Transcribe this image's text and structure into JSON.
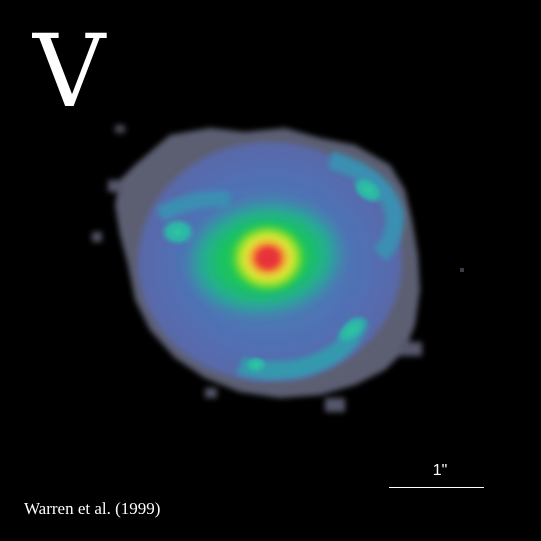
{
  "figure": {
    "filter_label": "V",
    "scale_bar_label": "1\"",
    "credit": "Warren et al. (1999)"
  },
  "colors": {
    "background": "#000000",
    "halo": "#5a5e7a",
    "outer": "#5b6fb0",
    "mid": "#2fa6a6",
    "inner": "#22cc44",
    "yellow": "#e8e83a",
    "core": "#e8303a",
    "text": "#ffffff"
  }
}
